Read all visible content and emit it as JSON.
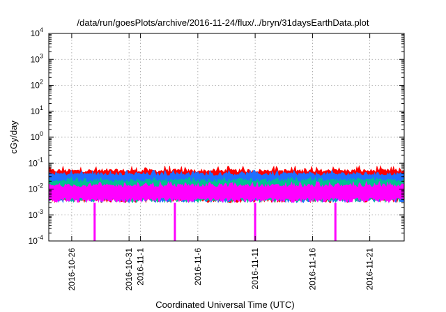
{
  "chart_data": {
    "type": "area",
    "title": "/data/run/goesPlots/archive/2016-11-24/flux/../bryn/31daysEarthData.plot",
    "xlabel": "Coordinated Universal Time (UTC)",
    "ylabel": "cGy/day",
    "x_range": [
      "2016-10-24",
      "2016-11-24"
    ],
    "y_scale": "log",
    "ylim": [
      0.0001,
      10000
    ],
    "grid": true,
    "legend": "none",
    "x_ticks": [
      "2016-10-26",
      "2016-10-31",
      "2016-11-1",
      "2016-11-6",
      "2016-11-11",
      "2016-11-16",
      "2016-11-21"
    ],
    "y_ticks": [
      {
        "value": 0.0001,
        "base": "10",
        "exp": "-4"
      },
      {
        "value": 0.001,
        "base": "10",
        "exp": "-3"
      },
      {
        "value": 0.01,
        "base": "10",
        "exp": "-2"
      },
      {
        "value": 0.1,
        "base": "10",
        "exp": "-1"
      },
      {
        "value": 1,
        "base": "10",
        "exp": "0"
      },
      {
        "value": 10,
        "base": "10",
        "exp": "1"
      },
      {
        "value": 100,
        "base": "10",
        "exp": "2"
      },
      {
        "value": 1000,
        "base": "10",
        "exp": "3"
      },
      {
        "value": 10000,
        "base": "10",
        "exp": "4"
      }
    ],
    "series": [
      {
        "color": "#ff0000",
        "band_low": 0.003,
        "band_high": 0.06,
        "peak_max": 0.08
      },
      {
        "color": "#1e6fff",
        "band_low": 0.003,
        "band_high": 0.045,
        "peak_max": 0.055
      },
      {
        "color": "#00c090",
        "band_low": 0.003,
        "band_high": 0.025,
        "peak_max": 0.03
      },
      {
        "color": "#ff00ff",
        "band_low": 0.003,
        "band_high": 0.016,
        "peak_max": 0.02
      }
    ],
    "dropouts": [
      {
        "date": "2016-10-28",
        "value": 0.0001
      },
      {
        "date": "2016-11-4",
        "value": 0.0001
      },
      {
        "date": "2016-11-11",
        "value": 0.0001
      },
      {
        "date": "2016-11-18",
        "value": 0.0001
      }
    ]
  }
}
